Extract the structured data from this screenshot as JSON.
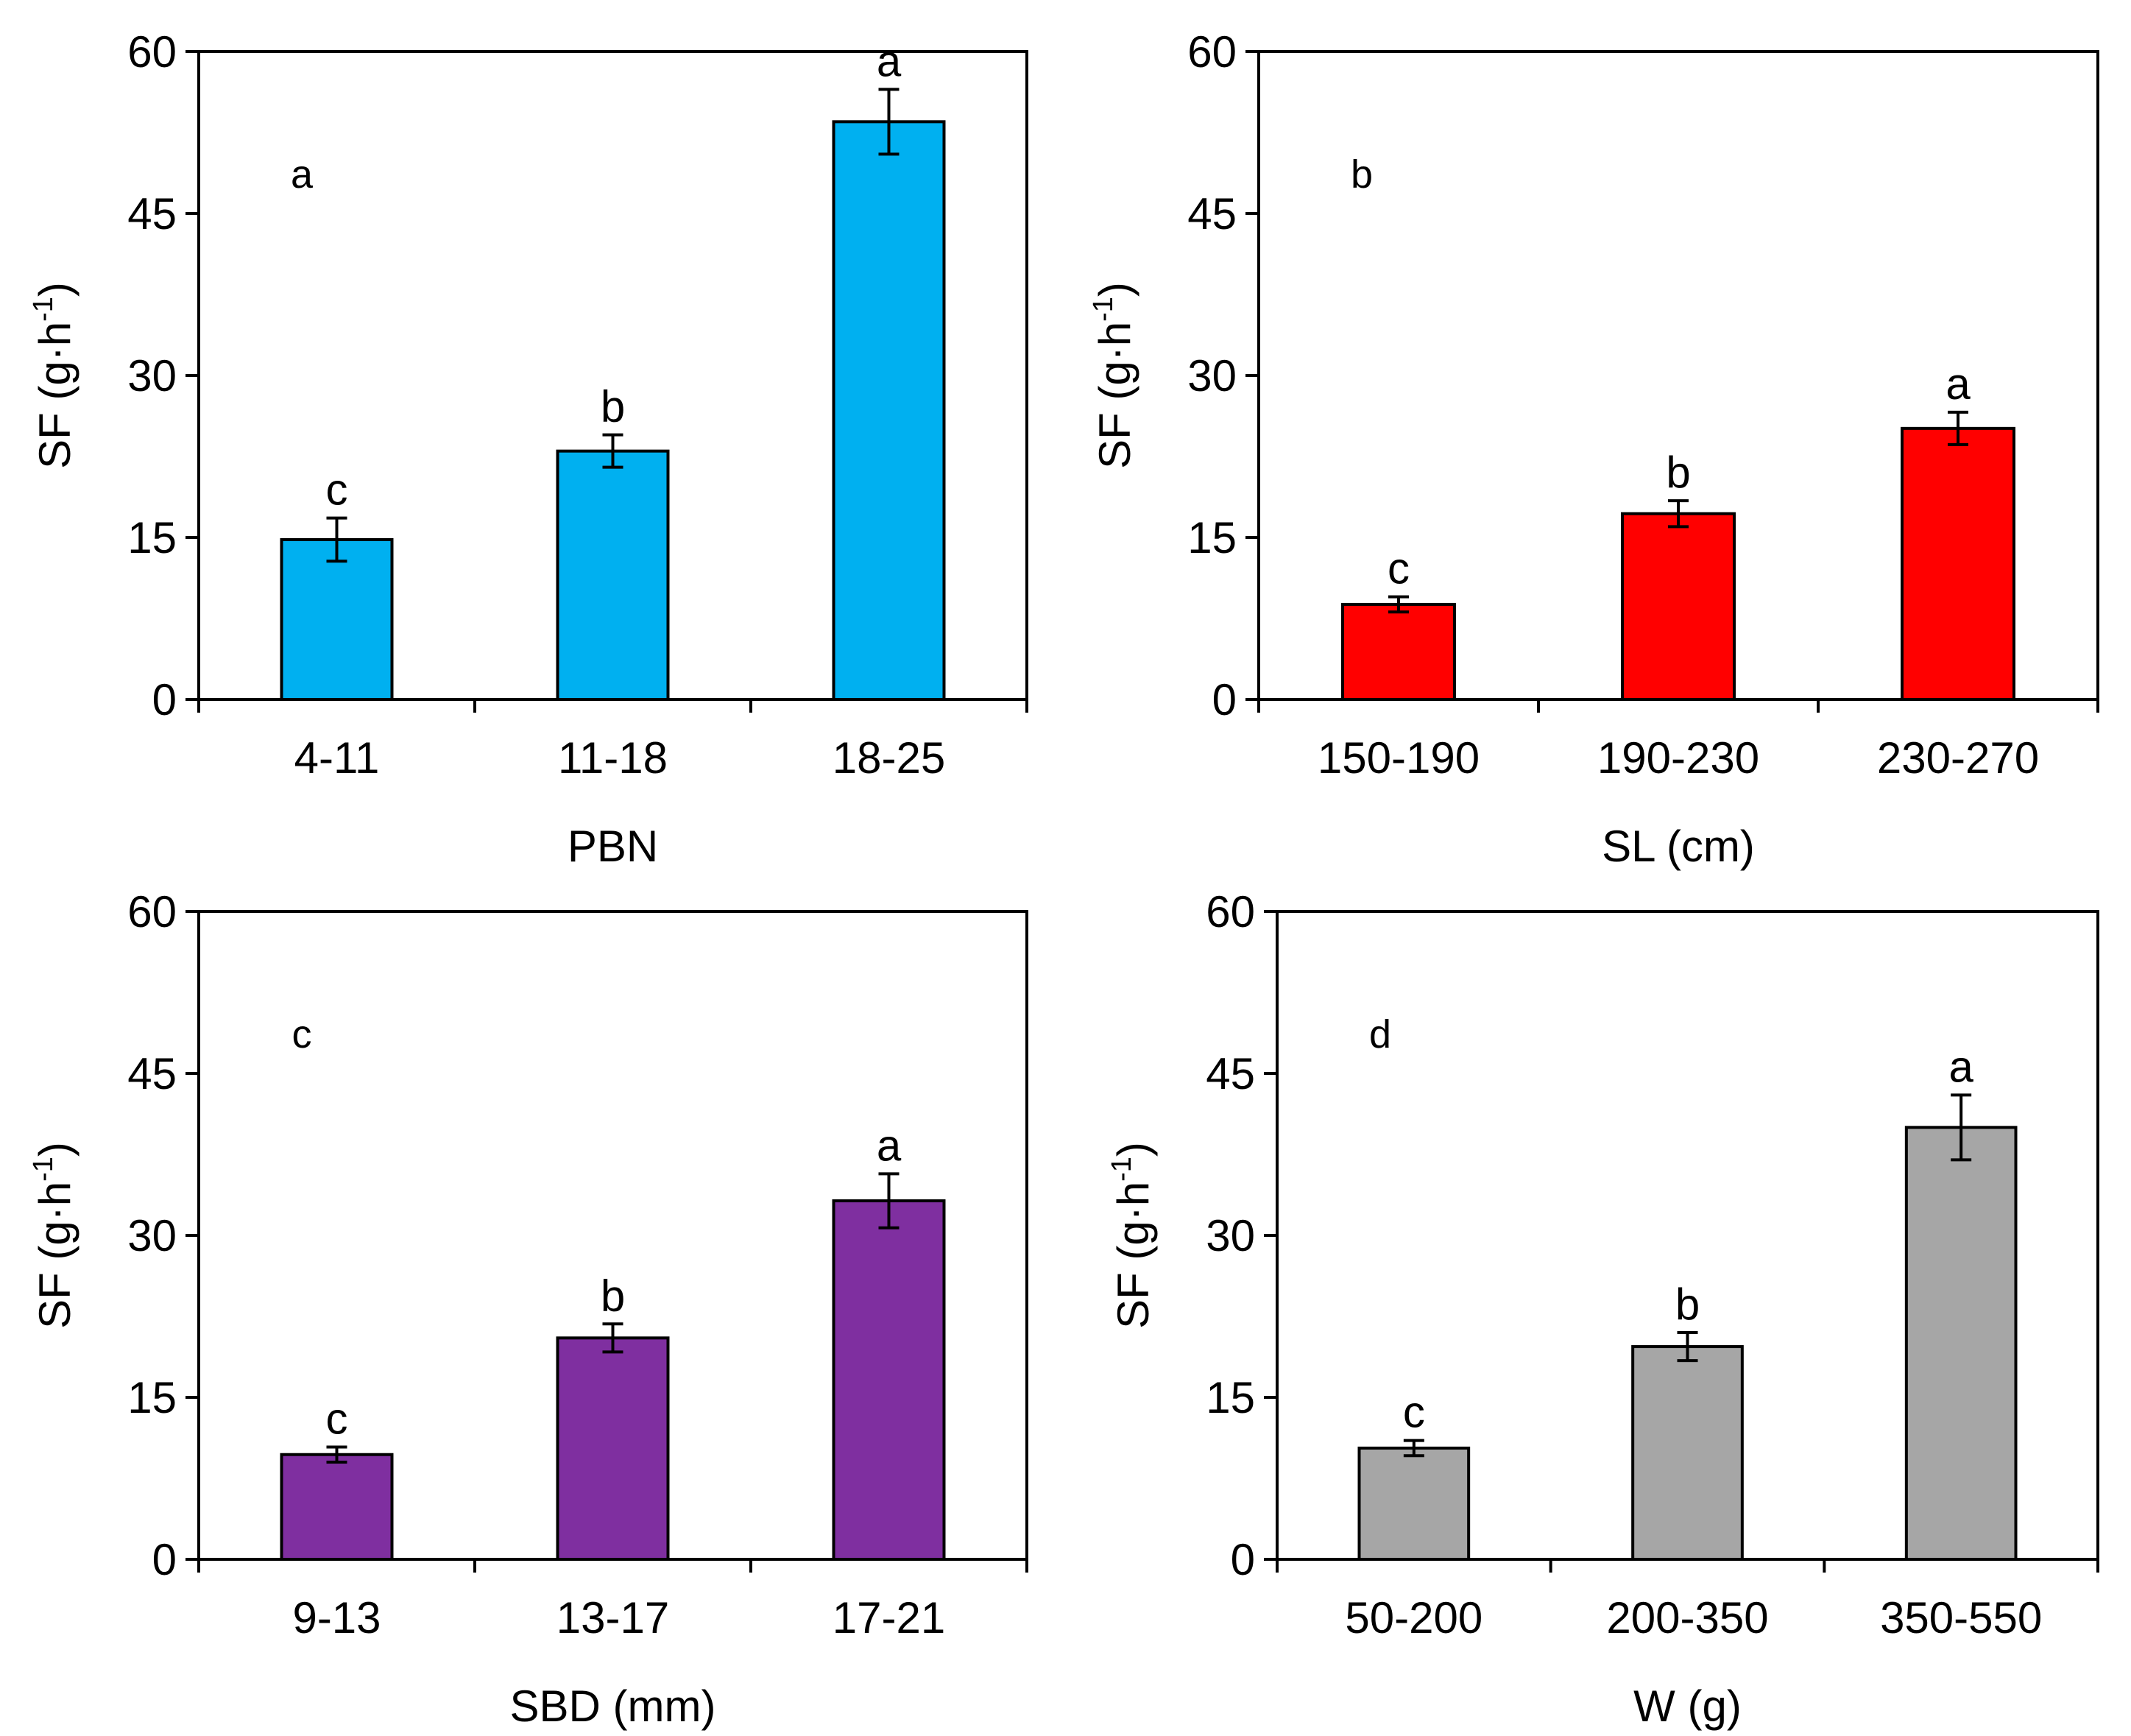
{
  "chart_data": [
    {
      "type": "bar",
      "panel_label": "a",
      "categories": [
        "4-11",
        "11-18",
        "18-25"
      ],
      "values": [
        14.8,
        23.0,
        53.5
      ],
      "errors": [
        2.0,
        1.5,
        3.0
      ],
      "significance": [
        "c",
        "b",
        "a"
      ],
      "xlabel": "PBN",
      "ylabel": "SF (g·h",
      "ylabel_sup": "-1",
      "ylabel_close": ")",
      "ylim": [
        0,
        60
      ],
      "yticks": [
        "0",
        "15",
        "30",
        "45",
        "60"
      ],
      "color": "#00B0F0"
    },
    {
      "type": "bar",
      "panel_label": "b",
      "categories": [
        "150-190",
        "190-230",
        "230-270"
      ],
      "values": [
        8.8,
        17.2,
        25.1
      ],
      "errors": [
        0.7,
        1.2,
        1.5
      ],
      "significance": [
        "c",
        "b",
        "a"
      ],
      "xlabel": "SL (cm)",
      "ylabel": "SF (g·h",
      "ylabel_sup": "-1",
      "ylabel_close": ")",
      "ylim": [
        0,
        60
      ],
      "yticks": [
        "0",
        "15",
        "30",
        "45",
        "60"
      ],
      "color": "#FF0000"
    },
    {
      "type": "bar",
      "panel_label": "c",
      "categories": [
        "9-13",
        "13-17",
        "17-21"
      ],
      "values": [
        9.7,
        20.5,
        33.2
      ],
      "errors": [
        0.7,
        1.3,
        2.5
      ],
      "significance": [
        "c",
        "b",
        "a"
      ],
      "xlabel": "SBD (mm)",
      "ylabel": "SF (g·h",
      "ylabel_sup": "-1",
      "ylabel_close": ")",
      "ylim": [
        0,
        60
      ],
      "yticks": [
        "0",
        "15",
        "30",
        "45",
        "60"
      ],
      "color": "#7F2FA0"
    },
    {
      "type": "bar",
      "panel_label": "d",
      "categories": [
        "50-200",
        "200-350",
        "350-550"
      ],
      "values": [
        10.3,
        19.7,
        40.0
      ],
      "errors": [
        0.7,
        1.3,
        3.0
      ],
      "significance": [
        "c",
        "b",
        "a"
      ],
      "xlabel": "W (g)",
      "ylabel": "SF (g·h",
      "ylabel_sup": "-1",
      "ylabel_close": ")",
      "ylim": [
        0,
        60
      ],
      "yticks": [
        "0",
        "15",
        "30",
        "45",
        "60"
      ],
      "color": "#A6A6A6"
    }
  ]
}
